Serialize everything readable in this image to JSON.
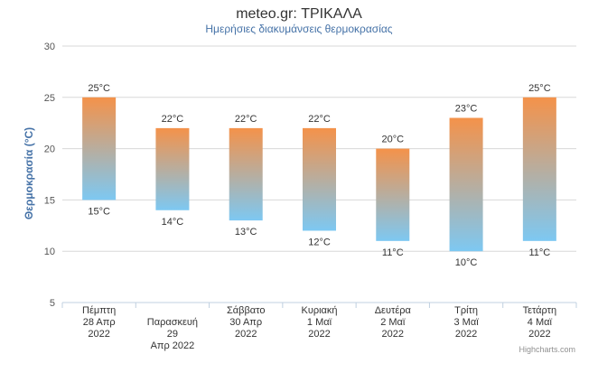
{
  "chart_data": {
    "type": "bar",
    "subtype": "columnrange",
    "title": "meteo.gr: ΤΡΙΚΑΛΑ",
    "subtitle": "Ημερήσιες διακυμάνσεις θερμοκρασίας",
    "ylabel": "Θερμοκρασία (°C)",
    "xlabel": "",
    "ylim": [
      5,
      30
    ],
    "yticks": [
      5,
      10,
      15,
      20,
      25,
      30
    ],
    "grid": true,
    "unit": "°C",
    "categories": [
      [
        "Πέμπτη",
        "28 Απρ",
        "2022"
      ],
      [
        "Παρασκευή",
        "29",
        "Απρ 2022"
      ],
      [
        "Σάββατο",
        "30 Απρ",
        "2022"
      ],
      [
        "Κυριακή",
        "1 Μαϊ",
        "2022"
      ],
      [
        "Δευτέρα",
        "2 Μαϊ",
        "2022"
      ],
      [
        "Τρίτη",
        "3 Μαϊ",
        "2022"
      ],
      [
        "Τετάρτη",
        "4 Μαϊ",
        "2022"
      ]
    ],
    "series": [
      {
        "values_low": [
          15,
          14,
          13,
          12,
          11,
          10,
          11
        ],
        "values_high": [
          25,
          22,
          22,
          22,
          20,
          23,
          25
        ]
      }
    ],
    "gradient": {
      "top": "#f4924a",
      "bottom": "#7dc8f2"
    },
    "credits": "Highcharts.com"
  }
}
